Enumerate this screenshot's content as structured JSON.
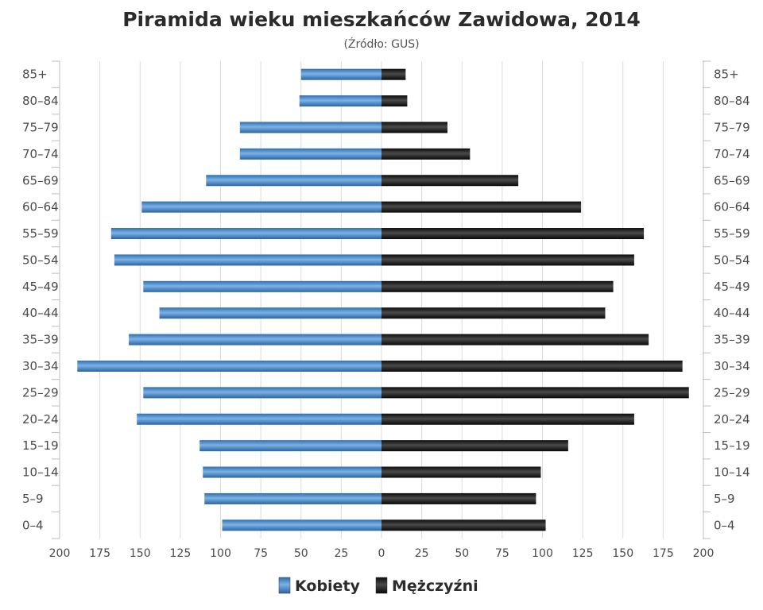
{
  "chart_data": {
    "type": "bar",
    "orientation": "horizontal",
    "layout": "population-pyramid",
    "title": "Piramida wieku mieszkańców Zawidowa, 2014",
    "subtitle": "(Źródło: GUS)",
    "categories": [
      "0–4",
      "5–9",
      "10–14",
      "15–19",
      "20–24",
      "25–29",
      "30–34",
      "35–39",
      "40–44",
      "45–49",
      "50–54",
      "55–59",
      "60–64",
      "65–69",
      "70–74",
      "75–79",
      "80–84",
      "85+"
    ],
    "series": [
      {
        "name": "Kobiety",
        "side": "left",
        "color": "#4a8bc8",
        "values": [
          99,
          110,
          111,
          113,
          152,
          148,
          189,
          157,
          138,
          148,
          166,
          168,
          149,
          109,
          88,
          88,
          51,
          50
        ]
      },
      {
        "name": "Mężczyźni",
        "side": "right",
        "color": "#222222",
        "values": [
          102,
          96,
          99,
          116,
          157,
          191,
          187,
          166,
          139,
          144,
          157,
          163,
          124,
          85,
          55,
          41,
          16,
          15
        ]
      }
    ],
    "xlim": [
      -200,
      200
    ],
    "xticks": [
      "200",
      "175",
      "150",
      "125",
      "100",
      "75",
      "50",
      "25",
      "0",
      "25",
      "50",
      "75",
      "100",
      "125",
      "150",
      "175",
      "200"
    ],
    "grid": true,
    "legend_position": "bottom-center"
  }
}
